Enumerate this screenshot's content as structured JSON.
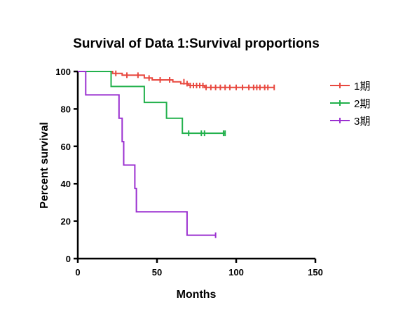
{
  "chart_data": {
    "type": "line",
    "subtype": "kaplan-meier-step",
    "title": "Survival of Data 1:Survival proportions",
    "xlabel": "Months",
    "ylabel": "Percent survival",
    "xlim": [
      0,
      150
    ],
    "ylim": [
      0,
      100
    ],
    "xticks": [
      "0",
      "50",
      "100",
      "150"
    ],
    "yticks": [
      "0",
      "20",
      "40",
      "60",
      "80",
      "100"
    ],
    "grid": false,
    "legend_position": "top-right",
    "series": [
      {
        "name": "1期",
        "color": "#e8483f",
        "steps": [
          [
            0,
            100
          ],
          [
            22,
            100
          ],
          [
            22,
            99
          ],
          [
            28,
            99
          ],
          [
            28,
            98
          ],
          [
            42,
            98
          ],
          [
            42,
            96.5
          ],
          [
            47,
            96.5
          ],
          [
            47,
            95.5
          ],
          [
            60,
            95.5
          ],
          [
            60,
            94.5
          ],
          [
            65,
            94.5
          ],
          [
            65,
            93.5
          ],
          [
            70,
            93.5
          ],
          [
            70,
            92.5
          ],
          [
            80,
            92.5
          ],
          [
            80,
            91.5
          ],
          [
            124,
            91.5
          ]
        ],
        "censored": [
          [
            24,
            99
          ],
          [
            31,
            98
          ],
          [
            38,
            98
          ],
          [
            45,
            96.5
          ],
          [
            52,
            95.5
          ],
          [
            58,
            95.5
          ],
          [
            67,
            94.5
          ],
          [
            69,
            93.5
          ],
          [
            71,
            92.5
          ],
          [
            73,
            92.5
          ],
          [
            75,
            92.5
          ],
          [
            77,
            92.5
          ],
          [
            79,
            92.5
          ],
          [
            81,
            91.5
          ],
          [
            84,
            91.5
          ],
          [
            87,
            91.5
          ],
          [
            90,
            91.5
          ],
          [
            93,
            91.5
          ],
          [
            96,
            91.5
          ],
          [
            100,
            91.5
          ],
          [
            104,
            91.5
          ],
          [
            108,
            91.5
          ],
          [
            111,
            91.5
          ],
          [
            113,
            91.5
          ],
          [
            115,
            91.5
          ],
          [
            118,
            91.5
          ],
          [
            120,
            91.5
          ],
          [
            124,
            91.5
          ]
        ]
      },
      {
        "name": "2期",
        "color": "#22b14c",
        "steps": [
          [
            0,
            100
          ],
          [
            21,
            100
          ],
          [
            21,
            92
          ],
          [
            42,
            92
          ],
          [
            42,
            83.5
          ],
          [
            56,
            83.5
          ],
          [
            56,
            75
          ],
          [
            66,
            75
          ],
          [
            66,
            67
          ],
          [
            93,
            67
          ]
        ],
        "censored": [
          [
            70,
            67
          ],
          [
            78,
            67
          ],
          [
            80,
            67
          ],
          [
            92,
            67
          ],
          [
            93,
            67
          ]
        ]
      },
      {
        "name": "3期",
        "color": "#9b30d0",
        "steps": [
          [
            0,
            100
          ],
          [
            5,
            100
          ],
          [
            5,
            87.5
          ],
          [
            26,
            87.5
          ],
          [
            26,
            75
          ],
          [
            28,
            75
          ],
          [
            28,
            62.5
          ],
          [
            29,
            62.5
          ],
          [
            29,
            50
          ],
          [
            36,
            50
          ],
          [
            36,
            37.5
          ],
          [
            37,
            37.5
          ],
          [
            37,
            25
          ],
          [
            69,
            25
          ],
          [
            69,
            12.5
          ],
          [
            87,
            12.5
          ]
        ],
        "censored": [
          [
            87,
            12.5
          ]
        ]
      }
    ]
  }
}
